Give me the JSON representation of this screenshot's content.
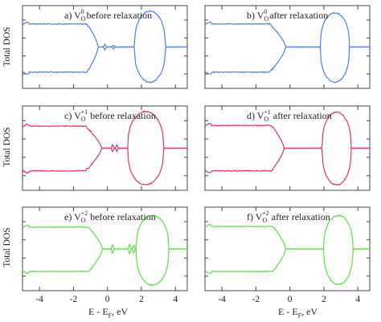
{
  "figure": {
    "ylabel": "Total DOS",
    "xlabel": "E - E",
    "xlabel_sub": "F",
    "xlabel_unit": ", eV",
    "tick_labels": [
      "-4",
      "-2",
      "0",
      "2",
      "4"
    ]
  },
  "chart_data": [
    {
      "type": "line",
      "panel": "a",
      "color": "#4f7fe0",
      "label_prefix": "a) V",
      "label_sub": "O",
      "label_sup": "0",
      "label_suffix": " before relaxation",
      "xlim": [
        -5,
        4.7
      ],
      "ylim": [
        -1.15,
        1.15
      ],
      "xticks": [
        -4,
        -2,
        0,
        2,
        4
      ],
      "valence_band": {
        "x_start": -5,
        "x_end": -1.2,
        "top_level": 0.64,
        "bottom_level": -0.7,
        "tail_end": -0.55
      },
      "gap_states": [
        {
          "x": -0.15,
          "height": 0.08
        },
        {
          "x": 0.35,
          "height": 0.06
        }
      ],
      "conduction_band": {
        "x_start": 1.6,
        "x_end": 3.4,
        "top_level": 1.0,
        "bottom_level": -0.98
      }
    },
    {
      "type": "line",
      "panel": "b",
      "color": "#4f7fe0",
      "label_prefix": "b) V",
      "label_sub": "O",
      "label_sup": "0",
      "label_suffix": " after relaxation",
      "xlim": [
        -5,
        4.7
      ],
      "ylim": [
        -1.15,
        1.15
      ],
      "xticks": [
        -4,
        -2,
        0,
        2,
        4
      ],
      "valence_band": {
        "x_start": -5,
        "x_end": -1.2,
        "top_level": 0.64,
        "bottom_level": -0.7,
        "tail_end": -0.25
      },
      "gap_states": [],
      "conduction_band": {
        "x_start": 1.8,
        "x_end": 3.5,
        "top_level": 0.95,
        "bottom_level": -0.98
      }
    },
    {
      "type": "line",
      "panel": "c",
      "color": "#e0336b",
      "label_prefix": "c) V",
      "label_sub": "O",
      "label_sup": "+1",
      "label_suffix": " before relaxation",
      "xlim": [
        -5,
        4.7
      ],
      "ylim": [
        -1.15,
        1.15
      ],
      "xticks": [
        -4,
        -2,
        0,
        2,
        4
      ],
      "valence_band": {
        "x_start": -5,
        "x_end": -1.3,
        "top_level": 0.6,
        "bottom_level": -0.62,
        "tail_end": -0.35
      },
      "gap_states": [
        {
          "x": 0.3,
          "height": 0.1
        },
        {
          "x": 0.55,
          "height": 0.1
        }
      ],
      "conduction_band": {
        "x_start": 1.2,
        "x_end": 3.3,
        "top_level": 1.0,
        "bottom_level": -1.0
      }
    },
    {
      "type": "line",
      "panel": "d",
      "color": "#e0336b",
      "label_prefix": "d) V",
      "label_sub": "O",
      "label_sup": "+1",
      "label_suffix": " after relaxation",
      "xlim": [
        -5,
        4.7
      ],
      "ylim": [
        -1.15,
        1.15
      ],
      "xticks": [
        -4,
        -2,
        0,
        2,
        4
      ],
      "valence_band": {
        "x_start": -5,
        "x_end": -1.1,
        "top_level": 0.62,
        "bottom_level": -0.62,
        "tail_end": -0.35
      },
      "gap_states": [],
      "conduction_band": {
        "x_start": 1.9,
        "x_end": 3.6,
        "top_level": 0.98,
        "bottom_level": -1.0
      }
    },
    {
      "type": "line",
      "panel": "e",
      "color": "#5fe04a",
      "label_prefix": "e) V",
      "label_sub": "O",
      "label_sup": "+2",
      "label_suffix": " before relaxation",
      "xlim": [
        -5,
        4.7
      ],
      "ylim": [
        -1.15,
        1.15
      ],
      "xticks": [
        -4,
        -2,
        0,
        2,
        4
      ],
      "valence_band": {
        "x_start": -5,
        "x_end": -1.1,
        "top_level": 0.6,
        "bottom_level": -0.62,
        "tail_end": -0.3
      },
      "gap_states": [
        {
          "x": 0.3,
          "height": 0.12
        },
        {
          "x": 1.3,
          "height": 0.14
        },
        {
          "x": 1.55,
          "height": 0.12
        }
      ],
      "conduction_band": {
        "x_start": 1.7,
        "x_end": 3.6,
        "top_level": 0.92,
        "bottom_level": -1.0
      }
    },
    {
      "type": "line",
      "panel": "f",
      "color": "#5fe04a",
      "label_prefix": "f) V",
      "label_sub": "O",
      "label_sup": "+2",
      "label_suffix": " after relaxation",
      "xlim": [
        -5,
        4.7
      ],
      "ylim": [
        -1.15,
        1.15
      ],
      "xticks": [
        -4,
        -2,
        0,
        2,
        4
      ],
      "valence_band": {
        "x_start": -5,
        "x_end": -1.0,
        "top_level": 0.62,
        "bottom_level": -0.62,
        "tail_end": -0.25
      },
      "gap_states": [],
      "conduction_band": {
        "x_start": 2.0,
        "x_end": 3.7,
        "top_level": 0.92,
        "bottom_level": -0.98
      }
    }
  ]
}
